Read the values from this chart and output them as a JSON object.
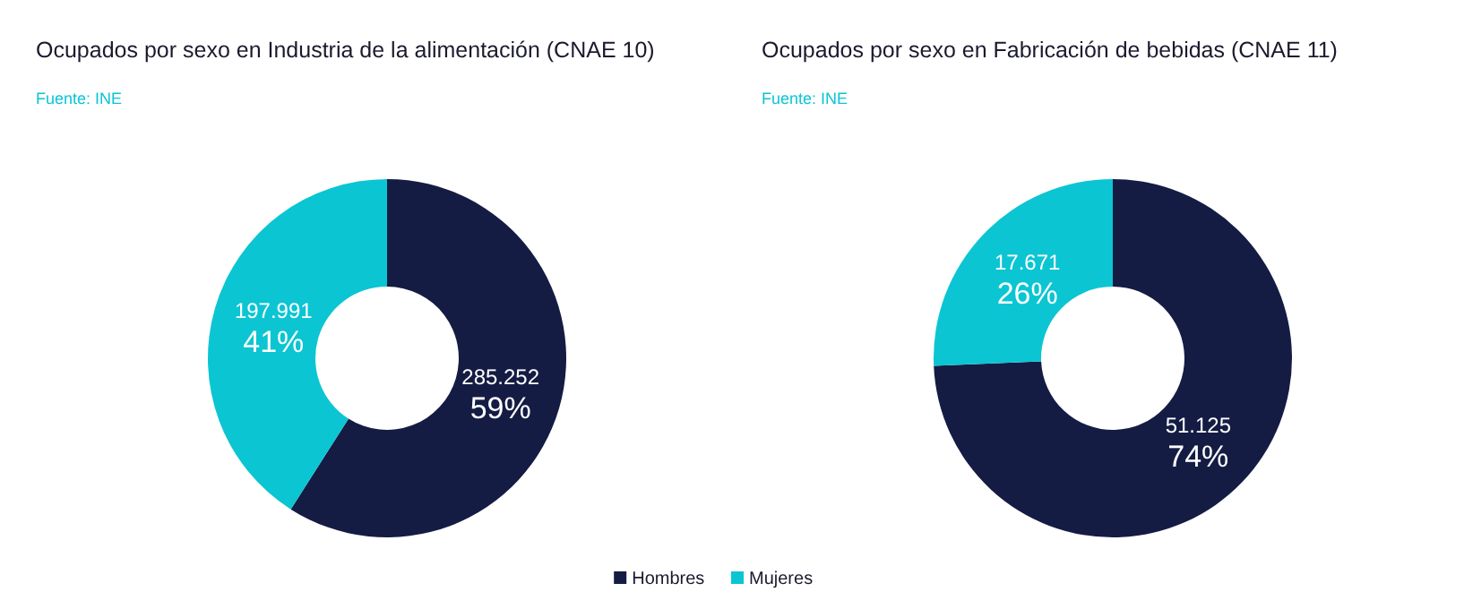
{
  "chart_data": [
    {
      "type": "donut",
      "title": "Ocupados por sexo en Industria de la alimentación (CNAE 10)",
      "subtitle": "Fuente: INE",
      "categories": [
        "Hombres",
        "Mujeres"
      ],
      "values": [
        285252,
        197991
      ],
      "colors": [
        "#141c44",
        "#0bc5d3"
      ],
      "value_labels": [
        "285.252\n59%",
        "197.991\n41%"
      ],
      "legend": "bottom"
    },
    {
      "type": "donut",
      "title": "Ocupados por sexo en Fabricación de bebidas (CNAE 11)",
      "subtitle": "Fuente: INE",
      "categories": [
        null,
        null
      ],
      "values": [
        51125,
        17671
      ],
      "colors": [
        "#141c44",
        "#0bc5d3"
      ],
      "value_labels": [
        "51.125\n74%",
        "17.671\n26%"
      ]
    }
  ]
}
